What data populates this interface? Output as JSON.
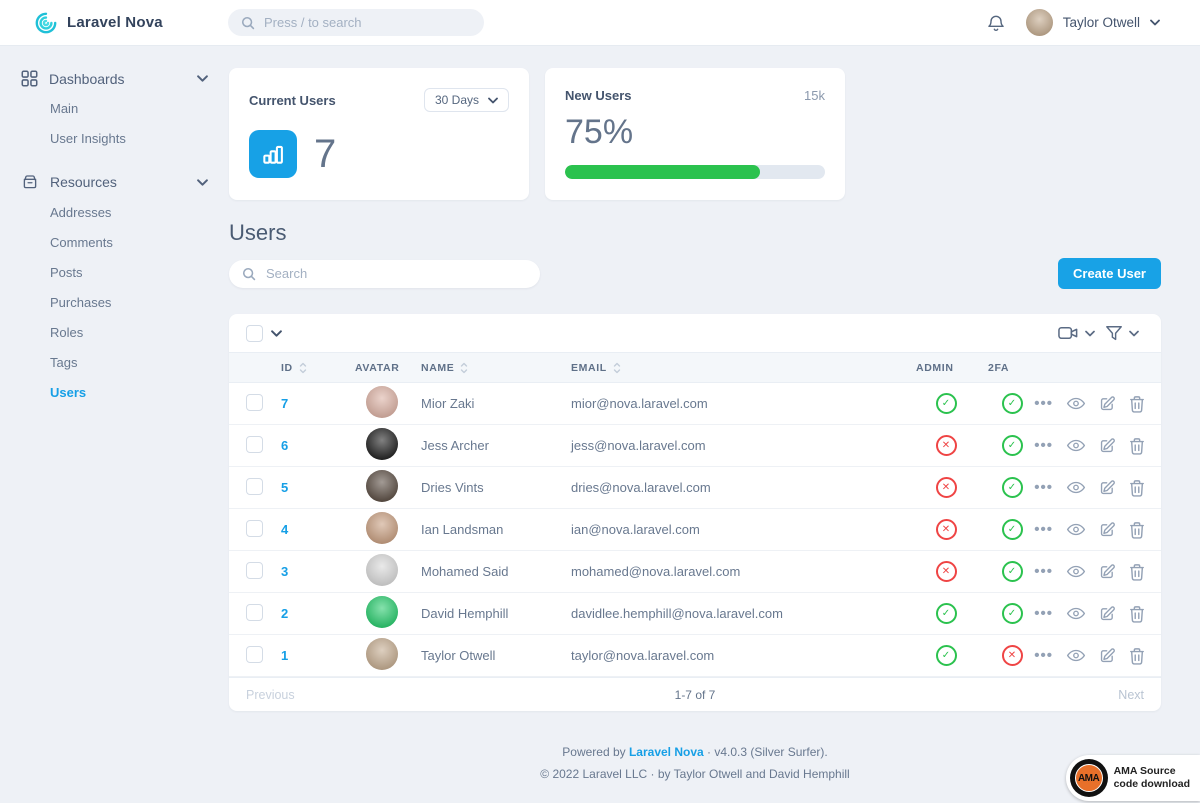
{
  "colors": {
    "accent": "#18a2e6",
    "green": "#2bc24e",
    "red": "#ef4444",
    "logo_cyan": "#1fc0d7"
  },
  "navbar": {
    "brand": "Laravel Nova",
    "search_placeholder": "Press / to search",
    "user_name": "Taylor Otwell",
    "user_avatar_color": "#c5ad92"
  },
  "sidebar": {
    "sections": [
      {
        "label": "Dashboards",
        "items": [
          {
            "label": "Main"
          },
          {
            "label": "User Insights"
          }
        ]
      },
      {
        "label": "Resources",
        "items": [
          {
            "label": "Addresses"
          },
          {
            "label": "Comments"
          },
          {
            "label": "Posts"
          },
          {
            "label": "Purchases"
          },
          {
            "label": "Roles"
          },
          {
            "label": "Tags"
          },
          {
            "label": "Users"
          }
        ]
      }
    ],
    "active_item": "Users"
  },
  "metrics": {
    "current_users": {
      "title": "Current Users",
      "range": "30 Days",
      "value": "7"
    },
    "new_users": {
      "title": "New Users",
      "max": "15k",
      "value": "75%",
      "progress_pct": 75
    }
  },
  "users_page": {
    "title": "Users",
    "search_placeholder": "Search",
    "create_button": "Create User",
    "table": {
      "columns": {
        "id": "ID",
        "avatar": "AVATAR",
        "name": "NAME",
        "email": "EMAIL",
        "admin": "ADMIN",
        "tfa": "2FA"
      },
      "rows": [
        {
          "id": "7",
          "name": "Mior Zaki",
          "email": "mior@nova.laravel.com",
          "admin": "yes",
          "tfa": "yes",
          "avatar_color": "#dcb3a6"
        },
        {
          "id": "6",
          "name": "Jess Archer",
          "email": "jess@nova.laravel.com",
          "admin": "no",
          "tfa": "yes",
          "avatar_color": "#262626"
        },
        {
          "id": "5",
          "name": "Dries Vints",
          "email": "dries@nova.laravel.com",
          "admin": "no",
          "tfa": "yes",
          "avatar_color": "#5f5248"
        },
        {
          "id": "4",
          "name": "Ian Landsman",
          "email": "ian@nova.laravel.com",
          "admin": "no",
          "tfa": "yes",
          "avatar_color": "#c9a184"
        },
        {
          "id": "3",
          "name": "Mohamed Said",
          "email": "mohamed@nova.laravel.com",
          "admin": "no",
          "tfa": "yes",
          "avatar_color": "#d9d9d9"
        },
        {
          "id": "2",
          "name": "David Hemphill",
          "email": "davidlee.hemphill@nova.laravel.com",
          "admin": "yes",
          "tfa": "yes",
          "avatar_color": "#2ecc71"
        },
        {
          "id": "1",
          "name": "Taylor Otwell",
          "email": "taylor@nova.laravel.com",
          "admin": "yes",
          "tfa": "no",
          "avatar_color": "#c5ad92"
        }
      ],
      "pagination": {
        "previous": "Previous",
        "summary": "1-7 of 7",
        "next": "Next"
      }
    }
  },
  "footer": {
    "powered_prefix": "Powered by ",
    "brand": "Laravel Nova",
    "version_suffix": " · v4.0.3 (Silver Surfer).",
    "copyright": "© 2022 Laravel LLC · by Taylor Otwell and David Hemphill"
  },
  "badge": {
    "circle": "AMA",
    "line1": "AMA Source",
    "line2": "code download"
  }
}
